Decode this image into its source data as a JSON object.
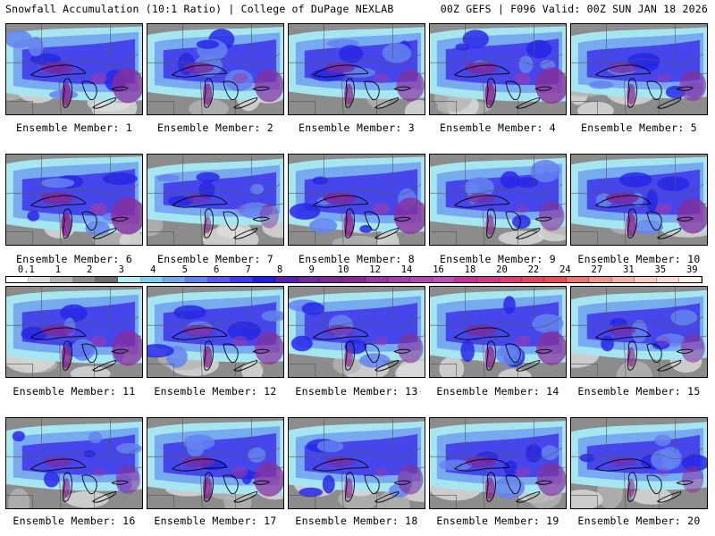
{
  "header": {
    "left_title": "Snowfall Accumulation (10:1 Ratio) | College of DuPage NEXLAB",
    "right_title": "00Z GEFS | F096 Valid: 00Z SUN JAN 18 2026"
  },
  "panel_caption_prefix": "Ensemble Member: ",
  "members": [
    {
      "number": "1",
      "intensity": 0.85
    },
    {
      "number": "2",
      "intensity": 0.75
    },
    {
      "number": "3",
      "intensity": 0.7
    },
    {
      "number": "4",
      "intensity": 0.9
    },
    {
      "number": "5",
      "intensity": 0.65
    },
    {
      "number": "6",
      "intensity": 0.95
    },
    {
      "number": "7",
      "intensity": 0.35
    },
    {
      "number": "8",
      "intensity": 0.9
    },
    {
      "number": "9",
      "intensity": 0.6
    },
    {
      "number": "10",
      "intensity": 0.85
    },
    {
      "number": "11",
      "intensity": 0.85
    },
    {
      "number": "12",
      "intensity": 0.75
    },
    {
      "number": "13",
      "intensity": 0.6
    },
    {
      "number": "14",
      "intensity": 0.8
    },
    {
      "number": "15",
      "intensity": 0.55
    },
    {
      "number": "16",
      "intensity": 0.55
    },
    {
      "number": "17",
      "intensity": 0.8
    },
    {
      "number": "18",
      "intensity": 0.6
    },
    {
      "number": "19",
      "intensity": 0.75
    },
    {
      "number": "20",
      "intensity": 0.45
    }
  ],
  "legend": {
    "labels": [
      "0.1",
      "1",
      "2",
      "3",
      "4",
      "5",
      "6",
      "7",
      "8",
      "9",
      "10",
      "12",
      "14",
      "16",
      "18",
      "20",
      "22",
      "24",
      "27",
      "31",
      "35",
      "39"
    ],
    "colors": [
      "#ffffff",
      "#dcdcdc",
      "#b4b4b4",
      "#8c8c8c",
      "#6e6e6e",
      "#b4f0f0",
      "#78d2f0",
      "#6eaaf0",
      "#6482f0",
      "#5a5af5",
      "#3c3cf0",
      "#1e1ee1",
      "#5a1eb4",
      "#6e28a0",
      "#822896",
      "#8c2896",
      "#9b32a5",
      "#aa3caf",
      "#b446b4",
      "#be50be",
      "#c8329b",
      "#d23c8c",
      "#dc3c78",
      "#e64664",
      "#e65050",
      "#e6786e",
      "#f0968c",
      "#f0b4aa",
      "#f5cdc3",
      "#fadcd2",
      "#fff0e6"
    ]
  }
}
